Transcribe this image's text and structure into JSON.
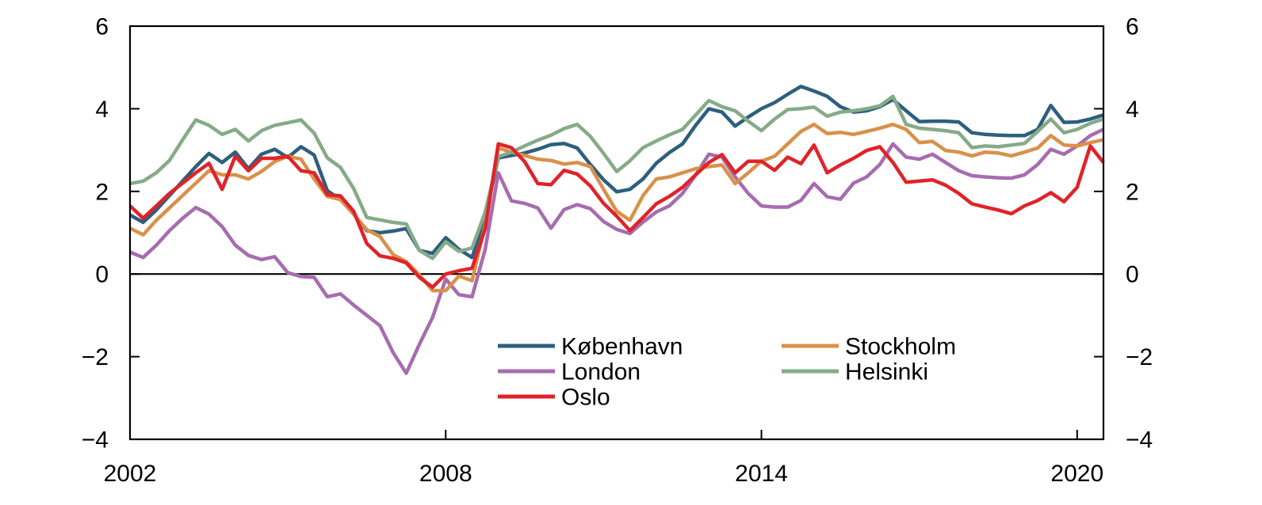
{
  "chart_data": {
    "type": "line",
    "title": "",
    "xlabel": "",
    "ylabel": "",
    "x_start": 2002,
    "x_step": 0.25,
    "xlim": [
      2002,
      2020.5
    ],
    "ylim": [
      -4,
      6
    ],
    "x_ticks": [
      2002,
      2008,
      2014,
      2020
    ],
    "x_tick_labels": [
      "2002",
      "2008",
      "2014",
      "2020"
    ],
    "y_ticks": [
      6,
      4,
      2,
      0,
      -2,
      -4
    ],
    "y_tick_labels": [
      "6",
      "4",
      "2",
      "0",
      "−2",
      "−4"
    ],
    "grid": false,
    "zero_line": true,
    "axis_color": "#000000",
    "background_color": "#ffffff",
    "legend_position": "inside-bottom-center",
    "legend_columns": [
      [
        0,
        1,
        2
      ],
      [
        3,
        4
      ]
    ],
    "z_order": [
      0,
      1,
      3,
      4,
      2
    ],
    "series": [
      {
        "name": "København",
        "color": "#2d5f7e",
        "values": [
          1.43,
          1.25,
          1.55,
          1.9,
          2.25,
          2.6,
          2.92,
          2.7,
          2.95,
          2.55,
          2.9,
          3.02,
          2.82,
          3.08,
          2.88,
          2.02,
          1.8,
          1.45,
          1.05,
          1.0,
          1.04,
          1.1,
          0.57,
          0.5,
          0.88,
          0.6,
          0.4,
          1.4,
          2.81,
          2.87,
          2.93,
          3.02,
          3.13,
          3.16,
          3.05,
          2.65,
          2.28,
          1.99,
          2.05,
          2.3,
          2.68,
          2.94,
          3.15,
          3.6,
          4.0,
          3.92,
          3.58,
          3.8,
          4.0,
          4.15,
          4.35,
          4.54,
          4.43,
          4.3,
          4.05,
          3.92,
          3.95,
          4.05,
          4.22,
          3.95,
          3.69,
          3.7,
          3.7,
          3.68,
          3.42,
          3.38,
          3.36,
          3.35,
          3.35,
          3.5,
          4.08,
          3.67,
          3.68,
          3.75,
          3.85
        ]
      },
      {
        "name": "London",
        "color": "#a76cb0",
        "values": [
          0.53,
          0.4,
          0.7,
          1.05,
          1.35,
          1.61,
          1.45,
          1.15,
          0.7,
          0.45,
          0.35,
          0.42,
          0.03,
          -0.06,
          -0.08,
          -0.55,
          -0.48,
          -0.75,
          -1.0,
          -1.25,
          -1.9,
          -2.4,
          -1.7,
          -1.05,
          -0.12,
          -0.5,
          -0.55,
          0.6,
          2.45,
          1.77,
          1.71,
          1.6,
          1.11,
          1.56,
          1.68,
          1.58,
          1.27,
          1.08,
          0.98,
          1.26,
          1.5,
          1.65,
          1.95,
          2.4,
          2.9,
          2.83,
          2.35,
          1.95,
          1.65,
          1.62,
          1.62,
          1.78,
          2.19,
          1.87,
          1.81,
          2.2,
          2.35,
          2.65,
          3.15,
          2.83,
          2.78,
          2.9,
          2.7,
          2.5,
          2.38,
          2.35,
          2.33,
          2.32,
          2.4,
          2.65,
          3.02,
          2.9,
          3.1,
          3.35,
          3.5
        ]
      },
      {
        "name": "Oslo",
        "color": "#e02329",
        "values": [
          1.65,
          1.35,
          1.65,
          1.95,
          2.2,
          2.45,
          2.68,
          2.05,
          2.85,
          2.5,
          2.8,
          2.8,
          2.85,
          2.5,
          2.45,
          1.92,
          1.89,
          1.52,
          0.74,
          0.44,
          0.38,
          0.27,
          -0.08,
          -0.32,
          0.0,
          0.08,
          0.14,
          1.1,
          3.15,
          3.06,
          2.72,
          2.19,
          2.16,
          2.51,
          2.42,
          2.13,
          1.71,
          1.4,
          1.05,
          1.37,
          1.7,
          1.88,
          2.1,
          2.4,
          2.7,
          2.89,
          2.45,
          2.73,
          2.73,
          2.51,
          2.83,
          2.67,
          3.12,
          2.45,
          2.64,
          2.8,
          2.99,
          3.08,
          2.7,
          2.22,
          2.25,
          2.28,
          2.15,
          1.95,
          1.7,
          1.62,
          1.55,
          1.46,
          1.65,
          1.78,
          1.97,
          1.75,
          2.1,
          3.1,
          2.7
        ]
      },
      {
        "name": "Stockholm",
        "color": "#d8914a",
        "values": [
          1.11,
          0.95,
          1.3,
          1.6,
          1.9,
          2.2,
          2.5,
          2.4,
          2.4,
          2.3,
          2.48,
          2.72,
          2.85,
          2.78,
          2.3,
          1.88,
          1.8,
          1.45,
          1.07,
          0.91,
          0.47,
          0.3,
          -0.02,
          -0.4,
          -0.4,
          -0.05,
          -0.16,
          1.2,
          3.05,
          2.95,
          2.87,
          2.78,
          2.75,
          2.66,
          2.7,
          2.6,
          2.05,
          1.52,
          1.3,
          1.9,
          2.3,
          2.35,
          2.45,
          2.55,
          2.6,
          2.64,
          2.19,
          2.45,
          2.73,
          2.85,
          3.15,
          3.45,
          3.62,
          3.4,
          3.43,
          3.38,
          3.45,
          3.53,
          3.62,
          3.5,
          3.18,
          3.21,
          2.99,
          2.95,
          2.86,
          2.95,
          2.93,
          2.86,
          2.95,
          3.05,
          3.35,
          3.12,
          3.1,
          3.18,
          3.25
        ]
      },
      {
        "name": "Helsinki",
        "color": "#85ab88",
        "values": [
          2.19,
          2.25,
          2.45,
          2.75,
          3.25,
          3.73,
          3.6,
          3.38,
          3.5,
          3.22,
          3.47,
          3.6,
          3.66,
          3.73,
          3.41,
          2.81,
          2.58,
          2.07,
          1.37,
          1.31,
          1.25,
          1.21,
          0.57,
          0.38,
          0.78,
          0.55,
          0.63,
          1.5,
          2.84,
          2.95,
          3.1,
          3.24,
          3.36,
          3.52,
          3.62,
          3.33,
          2.92,
          2.48,
          2.74,
          3.06,
          3.22,
          3.37,
          3.5,
          3.85,
          4.2,
          4.05,
          3.95,
          3.7,
          3.47,
          3.75,
          3.98,
          4.0,
          4.04,
          3.82,
          3.92,
          3.95,
          4.0,
          4.07,
          4.3,
          3.62,
          3.53,
          3.5,
          3.47,
          3.42,
          3.06,
          3.1,
          3.08,
          3.12,
          3.16,
          3.45,
          3.75,
          3.42,
          3.5,
          3.65,
          3.75
        ]
      }
    ]
  }
}
